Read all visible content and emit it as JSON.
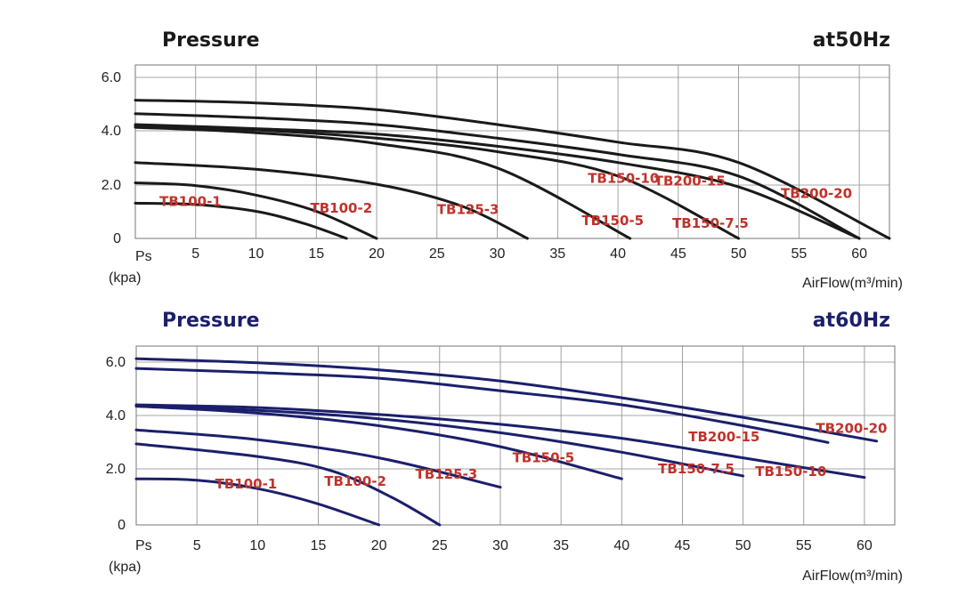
{
  "chart_data": [
    {
      "type": "line",
      "title": "Pressure",
      "subtitle": "at50Hz",
      "xlabel": "AirFlow(m³/min)",
      "ylabel": "Ps",
      "ylabel_unit": "(kpa)",
      "xlim": [
        0,
        62.5
      ],
      "ylim": [
        0,
        6.4
      ],
      "x_ticks": [
        "5",
        "10",
        "15",
        "20",
        "25",
        "30",
        "35",
        "40",
        "45",
        "50",
        "55",
        "60"
      ],
      "y_ticks": [
        "6.0",
        "4.0",
        "2.0",
        "0"
      ],
      "grid": true,
      "line_color": "#1a1a1a",
      "label_color": "#c0322b",
      "series": [
        {
          "name": "TB100-1",
          "x": [
            0,
            5,
            10,
            14,
            17.5
          ],
          "y": [
            1.3,
            1.25,
            1.0,
            0.55,
            0
          ]
        },
        {
          "name": "TB100-2",
          "x": [
            0,
            5,
            10,
            15,
            20
          ],
          "y": [
            2.05,
            1.95,
            1.6,
            1.0,
            0
          ]
        },
        {
          "name": "TB125-3",
          "x": [
            0,
            10,
            20,
            27,
            32.5
          ],
          "y": [
            2.8,
            2.55,
            2.0,
            1.2,
            0
          ]
        },
        {
          "name": "TB150-5",
          "x": [
            0,
            10,
            20,
            30,
            41
          ],
          "y": [
            4.1,
            3.9,
            3.5,
            2.6,
            0
          ]
        },
        {
          "name": "TB150-7.5",
          "x": [
            0,
            10,
            20,
            30,
            40,
            50
          ],
          "y": [
            4.15,
            4.0,
            3.7,
            3.2,
            2.3,
            0
          ]
        },
        {
          "name": "TB150-10",
          "x": [
            0,
            10,
            20,
            30,
            40,
            50,
            60
          ],
          "y": [
            4.2,
            4.05,
            3.85,
            3.4,
            2.8,
            1.9,
            0
          ]
        },
        {
          "name": "TB200-15",
          "x": [
            0,
            10,
            20,
            30,
            40,
            50,
            60
          ],
          "y": [
            4.6,
            4.45,
            4.2,
            3.7,
            3.1,
            2.3,
            0
          ]
        },
        {
          "name": "TB200-20",
          "x": [
            0,
            10,
            20,
            30,
            40,
            50,
            62.5
          ],
          "y": [
            5.1,
            5.0,
            4.75,
            4.2,
            3.55,
            2.8,
            0
          ]
        }
      ],
      "curve_labels": [
        {
          "text": "TB100-1",
          "x": 2,
          "y": 1.2
        },
        {
          "text": "TB100-2",
          "x": 14.5,
          "y": 0.95
        },
        {
          "text": "TB125-3",
          "x": 25,
          "y": 0.9
        },
        {
          "text": "TB150-5",
          "x": 37,
          "y": 0.5
        },
        {
          "text": "TB150-7.5",
          "x": 44.5,
          "y": 0.4
        },
        {
          "text": "TB150-10",
          "x": 37.5,
          "y": 2.05
        },
        {
          "text": "TB200-15",
          "x": 43,
          "y": 1.95
        },
        {
          "text": "TB200-20",
          "x": 53.5,
          "y": 1.5
        }
      ]
    },
    {
      "type": "line",
      "title": "Pressure",
      "subtitle": "at60Hz",
      "xlabel": "AirFlow(m³/min)",
      "ylabel": "Ps",
      "ylabel_unit": "(kpa)",
      "xlim": [
        0,
        62.5
      ],
      "ylim": [
        0,
        6.4
      ],
      "x_ticks": [
        "5",
        "10",
        "15",
        "20",
        "25",
        "30",
        "35",
        "40",
        "45",
        "50",
        "55",
        "60"
      ],
      "y_ticks": [
        "6.0",
        "4.0",
        "2.0",
        "0"
      ],
      "grid": true,
      "line_color": "#1b1f6b",
      "label_color": "#c0322b",
      "title_color": "#1b1f6b",
      "series": [
        {
          "name": "TB100-1",
          "x": [
            0,
            5,
            10,
            15,
            20
          ],
          "y": [
            1.65,
            1.6,
            1.3,
            0.75,
            0
          ]
        },
        {
          "name": "TB100-2",
          "x": [
            0,
            10,
            16,
            21,
            25
          ],
          "y": [
            2.9,
            2.45,
            1.95,
            1.0,
            0
          ]
        },
        {
          "name": "TB125-3",
          "x": [
            0,
            10,
            20,
            30
          ],
          "y": [
            3.4,
            3.05,
            2.4,
            1.35
          ]
        },
        {
          "name": "TB150-5",
          "x": [
            0,
            10,
            20,
            30,
            40
          ],
          "y": [
            4.25,
            4.0,
            3.55,
            2.8,
            1.65
          ]
        },
        {
          "name": "TB150-7.5",
          "x": [
            0,
            10,
            20,
            30,
            40,
            50
          ],
          "y": [
            4.25,
            4.1,
            3.8,
            3.3,
            2.6,
            1.75
          ]
        },
        {
          "name": "TB150-10",
          "x": [
            0,
            10,
            20,
            30,
            40,
            50,
            60
          ],
          "y": [
            4.3,
            4.2,
            3.95,
            3.6,
            3.1,
            2.4,
            1.7
          ]
        },
        {
          "name": "TB200-15",
          "x": [
            0,
            10,
            20,
            30,
            40,
            50,
            57
          ],
          "y": [
            5.6,
            5.45,
            5.25,
            4.8,
            4.3,
            3.55,
            2.95
          ]
        },
        {
          "name": "TB200-20",
          "x": [
            0,
            10,
            20,
            30,
            40,
            50,
            61
          ],
          "y": [
            5.95,
            5.8,
            5.55,
            5.15,
            4.55,
            3.85,
            3.0
          ]
        }
      ],
      "curve_labels": [
        {
          "text": "TB100-1",
          "x": 6.5,
          "y": 1.3
        },
        {
          "text": "TB100-2",
          "x": 15.5,
          "y": 1.4
        },
        {
          "text": "TB125-3",
          "x": 23,
          "y": 1.65
        },
        {
          "text": "TB150-5",
          "x": 31,
          "y": 2.25
        },
        {
          "text": "TB150-7.5",
          "x": 43,
          "y": 1.85
        },
        {
          "text": "TB150-10",
          "x": 51,
          "y": 1.75
        },
        {
          "text": "TB200-15",
          "x": 45.5,
          "y": 3.0
        },
        {
          "text": "TB200-20",
          "x": 56,
          "y": 3.3
        }
      ]
    }
  ]
}
